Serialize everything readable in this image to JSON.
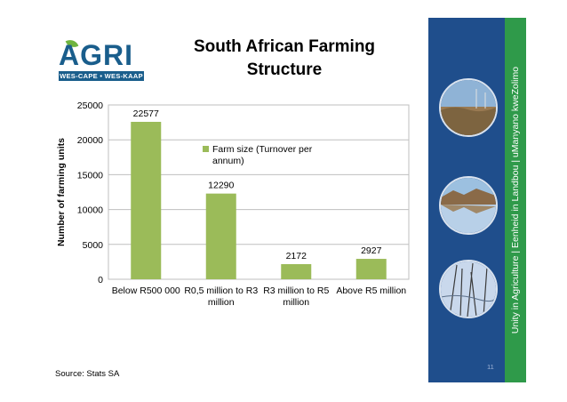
{
  "logo": {
    "word": "AGRI",
    "band": "WES-CAPE • WES-KAAP"
  },
  "slide": {
    "title_line1": "South African Farming",
    "title_line2": "Structure",
    "source": "Source:  Stats SA",
    "page_number": "11"
  },
  "side_panel": {
    "tagline": "Unity in Agriculture | Eenheid in Landbou | uManyano kweZolimo",
    "photos": [
      "landscape-photo",
      "lake-reflection-photo",
      "reeds-water-photo"
    ]
  },
  "colors": {
    "bar": "#9bbb59",
    "brand_blue": "#1f4e8c",
    "brand_green": "#2f9a4a"
  },
  "chart_data": {
    "type": "bar",
    "categories": [
      [
        "Below R500 000"
      ],
      [
        "R0,5 million to R3",
        "million"
      ],
      [
        "R3 million to R5",
        "million"
      ],
      [
        "Above R5 million"
      ]
    ],
    "series": [
      {
        "name": "Farm size (Turnover per annum)",
        "values": [
          22577,
          12290,
          2172,
          2927
        ]
      }
    ],
    "legend_lines": [
      "Farm size (Turnover per",
      "annum)"
    ],
    "data_labels": [
      "22577",
      "12290",
      "2172",
      "2927"
    ],
    "ylabel": "Number of farming units",
    "xlabel": "",
    "ylim": [
      0,
      25000
    ],
    "yticks": [
      0,
      5000,
      10000,
      15000,
      20000,
      25000
    ],
    "grid": true,
    "legend_position": "inside-right"
  }
}
